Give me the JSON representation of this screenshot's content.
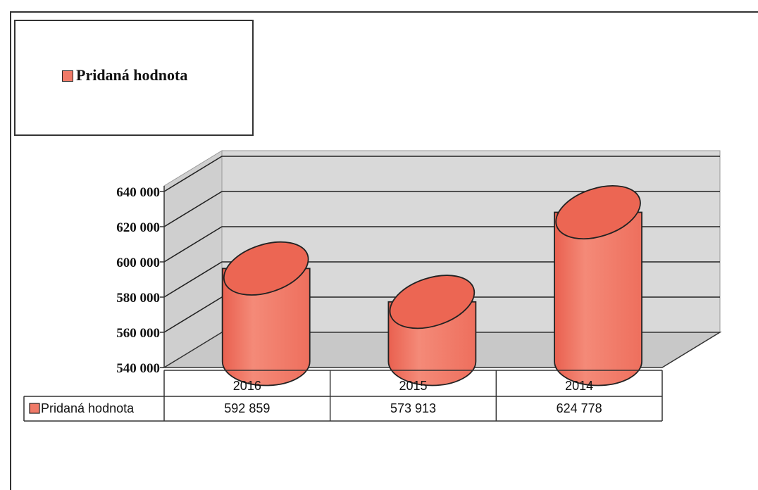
{
  "legend": {
    "label": "Pridaná hodnota",
    "color": "#f07a68"
  },
  "chart_data": {
    "type": "bar",
    "categories": [
      "2016",
      "2015",
      "2014"
    ],
    "series": [
      {
        "name": "Pridaná hodnota",
        "values": [
          592859,
          573913,
          624778
        ],
        "color": "#f07a68"
      }
    ],
    "ylim": [
      540000,
      640000
    ],
    "yticks": [
      540000,
      560000,
      580000,
      600000,
      620000,
      640000
    ],
    "ytick_labels": [
      "540 000",
      "560 000",
      "580 000",
      "600 000",
      "620 000",
      "640 000"
    ],
    "table": {
      "row_label": "Pridaná hodnota",
      "values": [
        "592 859",
        "573 913",
        "624 778"
      ]
    },
    "grid": true,
    "legend_position": "top-left",
    "style": "3d-cylinder"
  }
}
